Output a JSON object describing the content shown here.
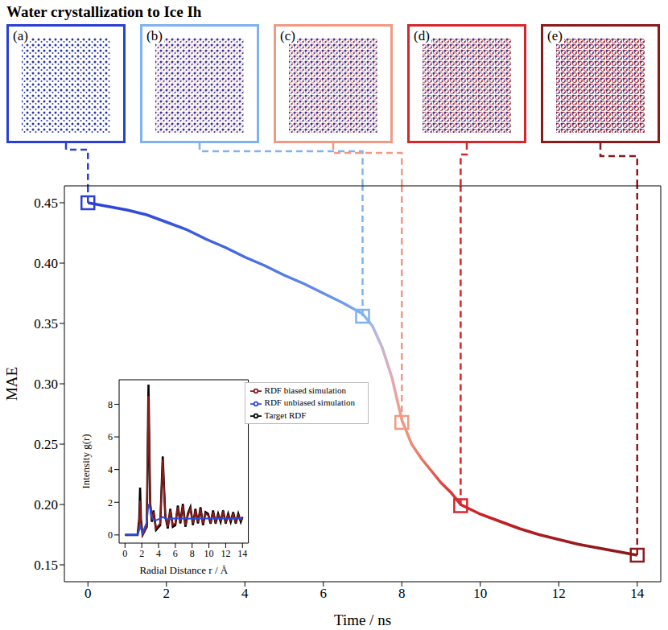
{
  "chart_data": [
    {
      "type": "line",
      "title": "Water crystallization to Ice Ih",
      "xlabel": "Time / ns",
      "ylabel": "MAE",
      "xlim": [
        -0.6,
        14.6
      ],
      "ylim": [
        0.136,
        0.464
      ],
      "xticks": [
        0,
        2,
        4,
        6,
        8,
        10,
        12,
        14
      ],
      "yticks": [
        0.15,
        {
          "value": 0.2,
          "label": "0.20"
        },
        0.25,
        {
          "value": 0.3,
          "label": "0.30"
        },
        0.35,
        {
          "value": 0.4,
          "label": "0.40"
        },
        0.45
      ],
      "x": [
        0,
        0.5,
        1,
        1.5,
        2,
        2.5,
        3,
        3.5,
        4,
        4.5,
        5,
        5.5,
        6,
        6.5,
        7,
        7.25,
        7.5,
        7.75,
        8,
        8.25,
        8.5,
        8.75,
        9,
        9.25,
        9.5,
        10,
        10.5,
        11,
        11.5,
        12,
        12.5,
        13,
        13.5,
        14
      ],
      "series": [
        {
          "colors": [
            "#2a3fd6",
            "#2d44d8",
            "#3049d9",
            "#334edb",
            "#3653dc",
            "#3a59de",
            "#3e5fe0",
            "#4366e1",
            "#486ce3",
            "#4e74e5",
            "#557de7",
            "#5c86e9",
            "#6590eb",
            "#6f9ced",
            "#7fb2ee",
            "#a6b8e6",
            "#cbb3d3",
            "#e3a8b4",
            "#f09a84",
            "#ee8a74",
            "#ea7764",
            "#e56255",
            "#e04a45",
            "#db3836",
            "#d7262b",
            "#cc2329",
            "#c12027",
            "#b61e24",
            "#ab1d22",
            "#a11c20",
            "#981b1e",
            "#921a1c",
            "#8d1a1b",
            "#8b1a1a"
          ],
          "values": [
            0.45,
            0.447,
            0.444,
            0.44,
            0.434,
            0.428,
            0.42,
            0.413,
            0.405,
            0.398,
            0.39,
            0.383,
            0.375,
            0.367,
            0.358,
            0.348,
            0.33,
            0.305,
            0.27,
            0.25,
            0.238,
            0.228,
            0.218,
            0.21,
            0.2,
            0.192,
            0.186,
            0.18,
            0.175,
            0.171,
            0.167,
            0.164,
            0.161,
            0.158
          ]
        }
      ],
      "snapshots": [
        {
          "label": "(a)",
          "x": 0,
          "y": 0.45,
          "color": "#2a3fd6"
        },
        {
          "label": "(b)",
          "x": 7,
          "y": 0.356,
          "color": "#7fb2ee"
        },
        {
          "label": "(c)",
          "x": 8,
          "y": 0.268,
          "color": "#f09a84"
        },
        {
          "label": "(d)",
          "x": 9.5,
          "y": 0.199,
          "color": "#d7262b"
        },
        {
          "label": "(e)",
          "x": 14,
          "y": 0.158,
          "color": "#8b1a1a"
        }
      ]
    },
    {
      "type": "line",
      "xlabel": "Radial Distance r / Å",
      "ylabel": "Intensity g(r)",
      "xlim": [
        -0.7,
        14.7
      ],
      "ylim": [
        -0.5,
        9.5
      ],
      "xticks": [
        0,
        2,
        4,
        6,
        8,
        10,
        12,
        14
      ],
      "yticks": [
        0,
        2,
        4,
        6,
        8
      ],
      "legend": "upper right",
      "x": [
        0,
        1.5,
        1.7,
        1.8,
        1.9,
        2.1,
        2.6,
        2.8,
        3.0,
        3.2,
        3.4,
        3.7,
        4.2,
        4.5,
        4.8,
        5.1,
        5.4,
        5.7,
        6.0,
        6.3,
        6.6,
        6.9,
        7.2,
        7.5,
        7.8,
        8.1,
        8.4,
        8.7,
        9.0,
        9.3,
        9.6,
        9.9,
        10.2,
        10.5,
        10.8,
        11.1,
        11.4,
        11.7,
        12.0,
        12.3,
        12.6,
        12.9,
        13.2,
        13.5,
        13.8,
        14.0
      ],
      "series": [
        {
          "name": "Target RDF",
          "color": "#000000",
          "values": [
            0,
            0,
            1.0,
            2.9,
            1.0,
            0,
            0.5,
            9.2,
            2.0,
            0.8,
            1.5,
            0.3,
            0.6,
            4.8,
            1.2,
            0.4,
            1.6,
            0.5,
            0.6,
            1.8,
            0.7,
            1.9,
            0.5,
            1.3,
            1.7,
            0.6,
            1.6,
            0.7,
            1.7,
            0.6,
            1.4,
            1.3,
            0.7,
            1.5,
            0.7,
            1.3,
            0.8,
            1.5,
            0.7,
            1.3,
            0.8,
            1.4,
            0.7,
            1.3,
            0.8,
            1.1
          ]
        },
        {
          "name": "RDF biased simulation",
          "color": "#8b1a1a",
          "values": [
            0,
            0,
            0.7,
            2.1,
            0.8,
            0,
            0.5,
            8.5,
            2.1,
            0.9,
            1.4,
            0.4,
            0.7,
            4.6,
            1.3,
            0.5,
            1.5,
            0.6,
            0.7,
            1.7,
            0.8,
            1.8,
            0.6,
            1.2,
            1.6,
            0.7,
            1.5,
            0.8,
            1.6,
            0.7,
            1.3,
            1.2,
            0.8,
            1.4,
            0.8,
            1.2,
            0.9,
            1.4,
            0.8,
            1.2,
            0.9,
            1.3,
            0.8,
            1.2,
            0.9,
            1.0
          ]
        },
        {
          "name": "RDF unbiased simulation",
          "color": "#2b4cdb",
          "values": [
            0,
            0,
            0.3,
            0.6,
            0.4,
            0.1,
            0.8,
            1.9,
            1.6,
            1.1,
            0.9,
            0.9,
            1.0,
            1.1,
            1.0,
            0.95,
            0.97,
            1.0,
            1.02,
            1.0,
            0.98,
            1.0,
            1.01,
            0.99,
            1.0,
            1.0,
            0.99,
            1.0,
            1.0,
            1.0,
            1.0,
            1.0,
            1.0,
            1.0,
            1.0,
            1.0,
            1.0,
            1.0,
            1.0,
            1.0,
            1.0,
            1.0,
            1.0,
            1.0,
            1.0,
            1.0
          ]
        }
      ]
    }
  ]
}
